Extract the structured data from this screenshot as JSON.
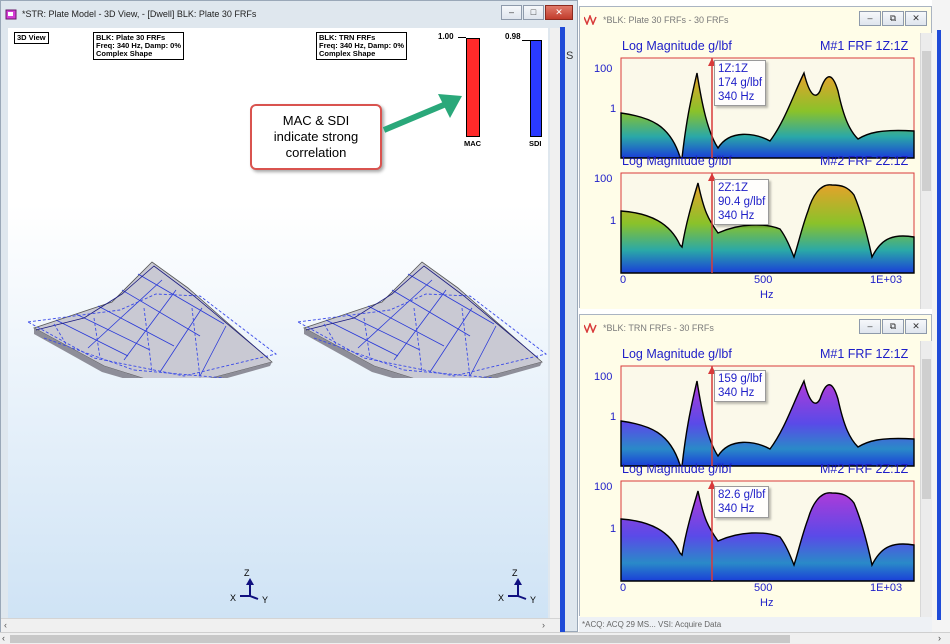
{
  "left_window": {
    "title": "*STR: Plate Model - 3D View,  - [Dwell] BLK: Plate 30 FRFs",
    "view_label": "3D View",
    "left_shape_label": [
      "BLK: Plate 30 FRFs",
      "Freq: 340 Hz, Damp: 0%",
      "Complex Shape"
    ],
    "right_shape_label": [
      "BLK: TRN FRFs",
      "Freq: 340 Hz, Damp: 0%",
      "Complex Shape"
    ],
    "mac": {
      "value_text": "1.00",
      "caption": "MAC",
      "value": 1.0,
      "color": "#ff2a2a"
    },
    "sdi": {
      "value_text": "0.98",
      "caption": "SDI",
      "value": 0.98,
      "color": "#2a3aff"
    },
    "callout_lines": [
      "MAC & SDI",
      "indicate strong",
      "correlation"
    ],
    "axis_triad": {
      "z": "Z",
      "x": "X",
      "y": "Y"
    },
    "stub_text": "S"
  },
  "frf_window_1": {
    "title": "*BLK: Plate 30 FRFs - 30 FRFs",
    "plots": [
      {
        "title": "Log Magnitude g/lbf",
        "measure": "M#1 FRF 1Z:1Z",
        "ytick_top": "100",
        "ytick_mid": "1",
        "cursor_lines": [
          "1Z:1Z",
          "174 g/lbf",
          "340 Hz"
        ],
        "color_top": "#d28a1a",
        "color_bottom": "#1a3fd8"
      },
      {
        "title": "Log Magnitude g/lbf",
        "measure": "M#2 FRF 2Z:1Z",
        "ytick_top": "100",
        "ytick_mid": "1",
        "cursor_lines": [
          "2Z:1Z",
          "90.4 g/lbf",
          "340 Hz"
        ],
        "color_top": "#d28a1a",
        "color_bottom": "#1a3fd8"
      }
    ],
    "x_ticks": [
      "0",
      "500",
      "1E+03"
    ],
    "x_label": "Hz"
  },
  "frf_window_2": {
    "title": "*BLK: TRN FRFs - 30 FRFs",
    "plots": [
      {
        "title": "Log Magnitude g/lbf",
        "measure": "M#1 FRF 1Z:1Z",
        "ytick_top": "100",
        "ytick_mid": "1",
        "cursor_lines": [
          "159 g/lbf",
          "340 Hz"
        ],
        "color_top": "#a23ad8",
        "color_bottom": "#1a3fd8"
      },
      {
        "title": "Log Magnitude g/lbf",
        "measure": "M#2 FRF 2Z:1Z",
        "ytick_top": "100",
        "ytick_mid": "1",
        "cursor_lines": [
          "82.6 g/lbf",
          "340 Hz"
        ],
        "color_top": "#a23ad8",
        "color_bottom": "#1a3fd8"
      }
    ],
    "x_ticks": [
      "0",
      "500",
      "1E+03"
    ],
    "x_label": "Hz"
  },
  "taskbar_text": "*ACQ: ACQ 29 MS...       VSI: Acquire Data",
  "window_controls": {
    "minimize": "–",
    "maximize": "□",
    "close": "✕",
    "restore": "⧉"
  }
}
